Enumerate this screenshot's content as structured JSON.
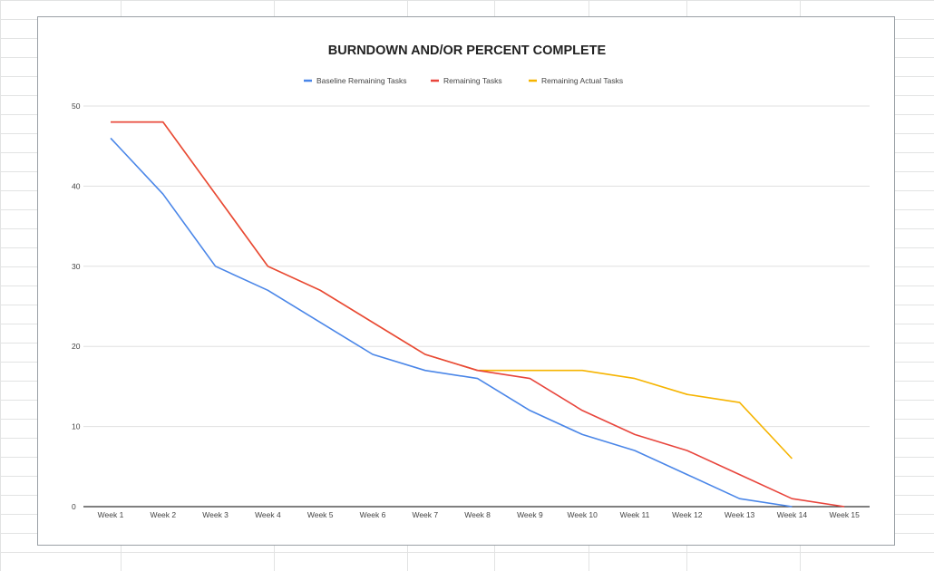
{
  "chart_data": {
    "type": "line",
    "title": "BURNDOWN AND/OR PERCENT COMPLETE",
    "xlabel": "",
    "ylabel": "",
    "categories": [
      "Week 1",
      "Week 2",
      "Week 3",
      "Week 4",
      "Week 5",
      "Week 6",
      "Week 7",
      "Week 8",
      "Week 9",
      "Week 10",
      "Week 11",
      "Week 12",
      "Week 13",
      "Week 14",
      "Week 15"
    ],
    "ylim": [
      0,
      50
    ],
    "yticks": [
      0,
      10,
      20,
      30,
      40,
      50
    ],
    "grid": true,
    "legend_position": "top",
    "series": [
      {
        "name": "Baseline Remaining Tasks",
        "color": "#4a86e8",
        "values": [
          46,
          39,
          30,
          27,
          23,
          19,
          17,
          16,
          12,
          9,
          7,
          4,
          1,
          0,
          null
        ]
      },
      {
        "name": "Remaining Tasks",
        "color": "#e8453c",
        "values": [
          48,
          48,
          39,
          30,
          27,
          23,
          19,
          17,
          16,
          12,
          9,
          7,
          4,
          1,
          0
        ]
      },
      {
        "name": "Remaining Actual Tasks",
        "color": "#f6b400",
        "values": [
          48,
          48,
          39,
          30,
          27,
          23,
          19,
          17,
          17,
          17,
          16,
          14,
          13,
          6,
          null
        ]
      }
    ]
  }
}
